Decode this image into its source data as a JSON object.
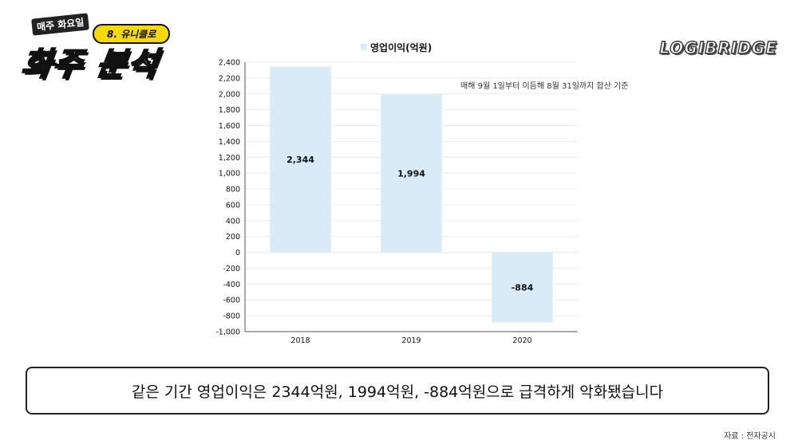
{
  "header": {
    "series_tag": "매주 화요일",
    "episode": "8. 유니클로",
    "title": "화주 분석"
  },
  "brand": "LOGIBRIDGE",
  "chart_data": {
    "type": "bar",
    "categories": [
      "2018",
      "2019",
      "2020"
    ],
    "series": [
      {
        "name": "영업이익(억원)",
        "values": [
          2344,
          1994,
          -884
        ]
      }
    ],
    "data_labels": [
      "2,344",
      "1,994",
      "-884"
    ],
    "ylim": [
      -1000,
      2400
    ],
    "yticks": [
      2400,
      2200,
      2000,
      1800,
      1600,
      1400,
      1200,
      1000,
      800,
      600,
      400,
      200,
      0,
      -200,
      -400,
      -600,
      -800,
      -1000
    ],
    "ytick_labels": [
      "2,400",
      "2,200",
      "2,000",
      "1,800",
      "1,600",
      "1,400",
      "1,200",
      "1,000",
      "800",
      "600",
      "400",
      "200",
      "0",
      "-200",
      "-400",
      "-600",
      "-800",
      "-1,000"
    ],
    "legend_position": "top",
    "grid": true,
    "annotation": "매해 9월 1일부터 이듬해 8월 31일까지 합산 기준",
    "bar_color": "#d9ebf7"
  },
  "caption": "같은 기간 영업이익은 2344억원, 1994억원, -884억원으로 급격하게 악화됐습니다",
  "source": "자료 : 전자공시"
}
